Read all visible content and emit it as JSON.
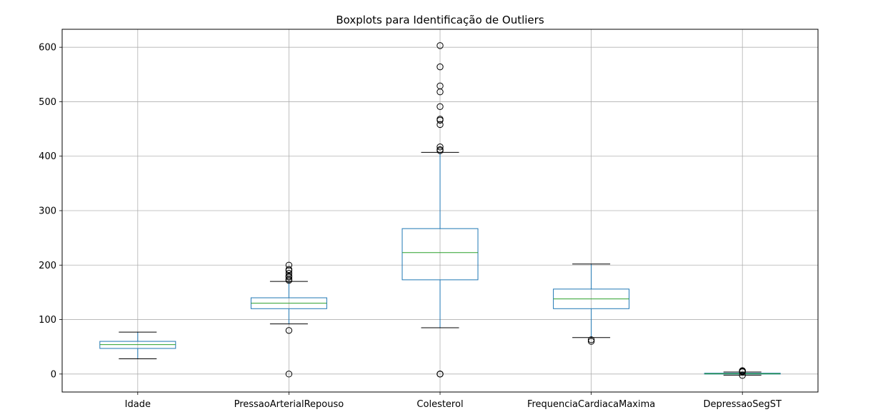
{
  "chart_data": {
    "type": "box",
    "title": "Boxplots para Identificação de Outliers",
    "xlabel": "",
    "ylabel": "",
    "ylim": [
      -33,
      633
    ],
    "yticks": [
      0,
      100,
      200,
      300,
      400,
      500,
      600
    ],
    "grid": true,
    "colors": {
      "box": "#1f77b4",
      "median": "#2ca02c",
      "whisker_cap": "#000000",
      "flier": "#000000",
      "grid": "#b0b0b0"
    },
    "categories": [
      "Idade",
      "PressaoArterialRepouso",
      "Colesterol",
      "FrequenciaCardiacaMaxima",
      "DepressaoSegST"
    ],
    "boxes": [
      {
        "name": "Idade",
        "whislo": 28,
        "q1": 47,
        "med": 54,
        "q3": 60,
        "whishi": 77,
        "fliers": []
      },
      {
        "name": "PressaoArterialRepouso",
        "whislo": 92,
        "q1": 120,
        "med": 130,
        "q3": 140,
        "whishi": 170,
        "fliers": [
          0,
          80,
          172,
          174,
          178,
          180,
          185,
          190,
          192,
          200
        ]
      },
      {
        "name": "Colesterol",
        "whislo": 85,
        "q1": 173,
        "med": 223,
        "q3": 267,
        "whishi": 407,
        "fliers": [
          0,
          0,
          0,
          410,
          412,
          417,
          458,
          466,
          468,
          491,
          518,
          529,
          564,
          603
        ]
      },
      {
        "name": "FrequenciaCardiacaMaxima",
        "whislo": 67,
        "q1": 120,
        "med": 138,
        "q3": 156,
        "whishi": 202,
        "fliers": [
          60,
          63
        ]
      },
      {
        "name": "DepressaoSegST",
        "whislo": -2,
        "q1": 0,
        "med": 0.6,
        "q3": 1.5,
        "whishi": 3.7,
        "fliers": [
          -2.6,
          4,
          4.2,
          5,
          5.6,
          6.2
        ]
      }
    ]
  }
}
